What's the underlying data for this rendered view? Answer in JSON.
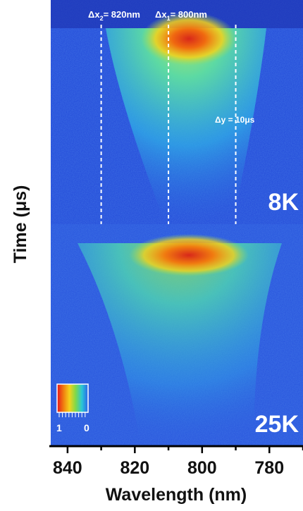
{
  "chart_data": {
    "type": "heatmap",
    "xlabel": "Wavelength (nm)",
    "ylabel": "Time (μs)",
    "xlim": [
      845,
      770
    ],
    "x_ticks": [
      840,
      820,
      800,
      780
    ],
    "panels": [
      {
        "name": "8K",
        "peak_wavelength_nm": 800,
        "signal": "strong"
      },
      {
        "name": "25K",
        "peak_wavelength_nm": 800,
        "signal": "weaker"
      }
    ],
    "markers": {
      "dashed_wavelengths_nm": [
        830,
        810,
        790
      ],
      "annotations": [
        {
          "text": "Δx",
          "sub": "2",
          "rest": "= 820nm"
        },
        {
          "text": "Δx",
          "sub": "1",
          "rest": "= 800nm"
        },
        {
          "text": "Δy = 10μs"
        }
      ]
    },
    "colorbar": {
      "min_label": "1",
      "max_label": "0",
      "colors": [
        "#e8141a",
        "#f07a10",
        "#f5d21a",
        "#7fd84a",
        "#2ac6d6",
        "#2a64e8"
      ]
    },
    "colors": {
      "background": "#1f3fd6",
      "noise": "#2f9fe8",
      "hot": "#e03a1a"
    }
  }
}
